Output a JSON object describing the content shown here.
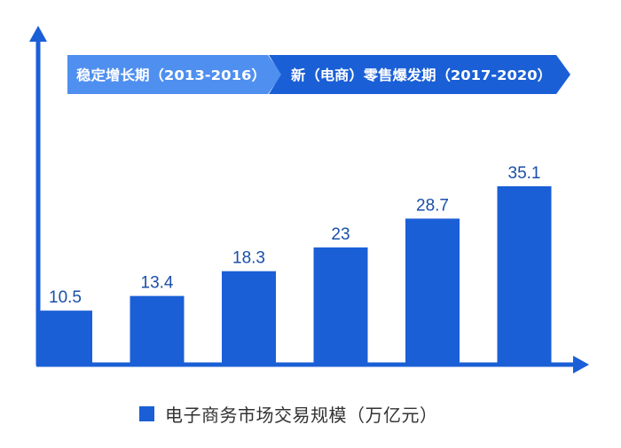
{
  "chart_data": {
    "type": "bar",
    "values": [
      10.5,
      13.4,
      18.3,
      23,
      28.7,
      35.1
    ],
    "value_labels": [
      "10.5",
      "13.4",
      "18.3",
      "23",
      "28.7",
      "35.1"
    ],
    "ylim": [
      0,
      40
    ],
    "grid": false,
    "series": [
      {
        "name": "电子商务市场交易规模（万亿元）",
        "values": [
          10.5,
          13.4,
          18.3,
          23,
          28.7,
          35.1
        ]
      }
    ],
    "phases": [
      {
        "label": "稳定增长期（2013-2016）",
        "first_index": 0,
        "last_index": 3
      },
      {
        "label": "新（电商）零售爆发期（2017-2020）",
        "first_index": 3,
        "last_index": 5
      }
    ],
    "legend": {
      "label": "电子商务市场交易规模（万亿元）",
      "position": "bottom-center"
    }
  },
  "colors": {
    "bar": "#1a5fd6",
    "axis": "#1a5fd6",
    "label": "#1a4fa8",
    "phase1": "#4f8ff0",
    "phase2": "#1a5fd6",
    "phase_text": "#ffffff"
  }
}
